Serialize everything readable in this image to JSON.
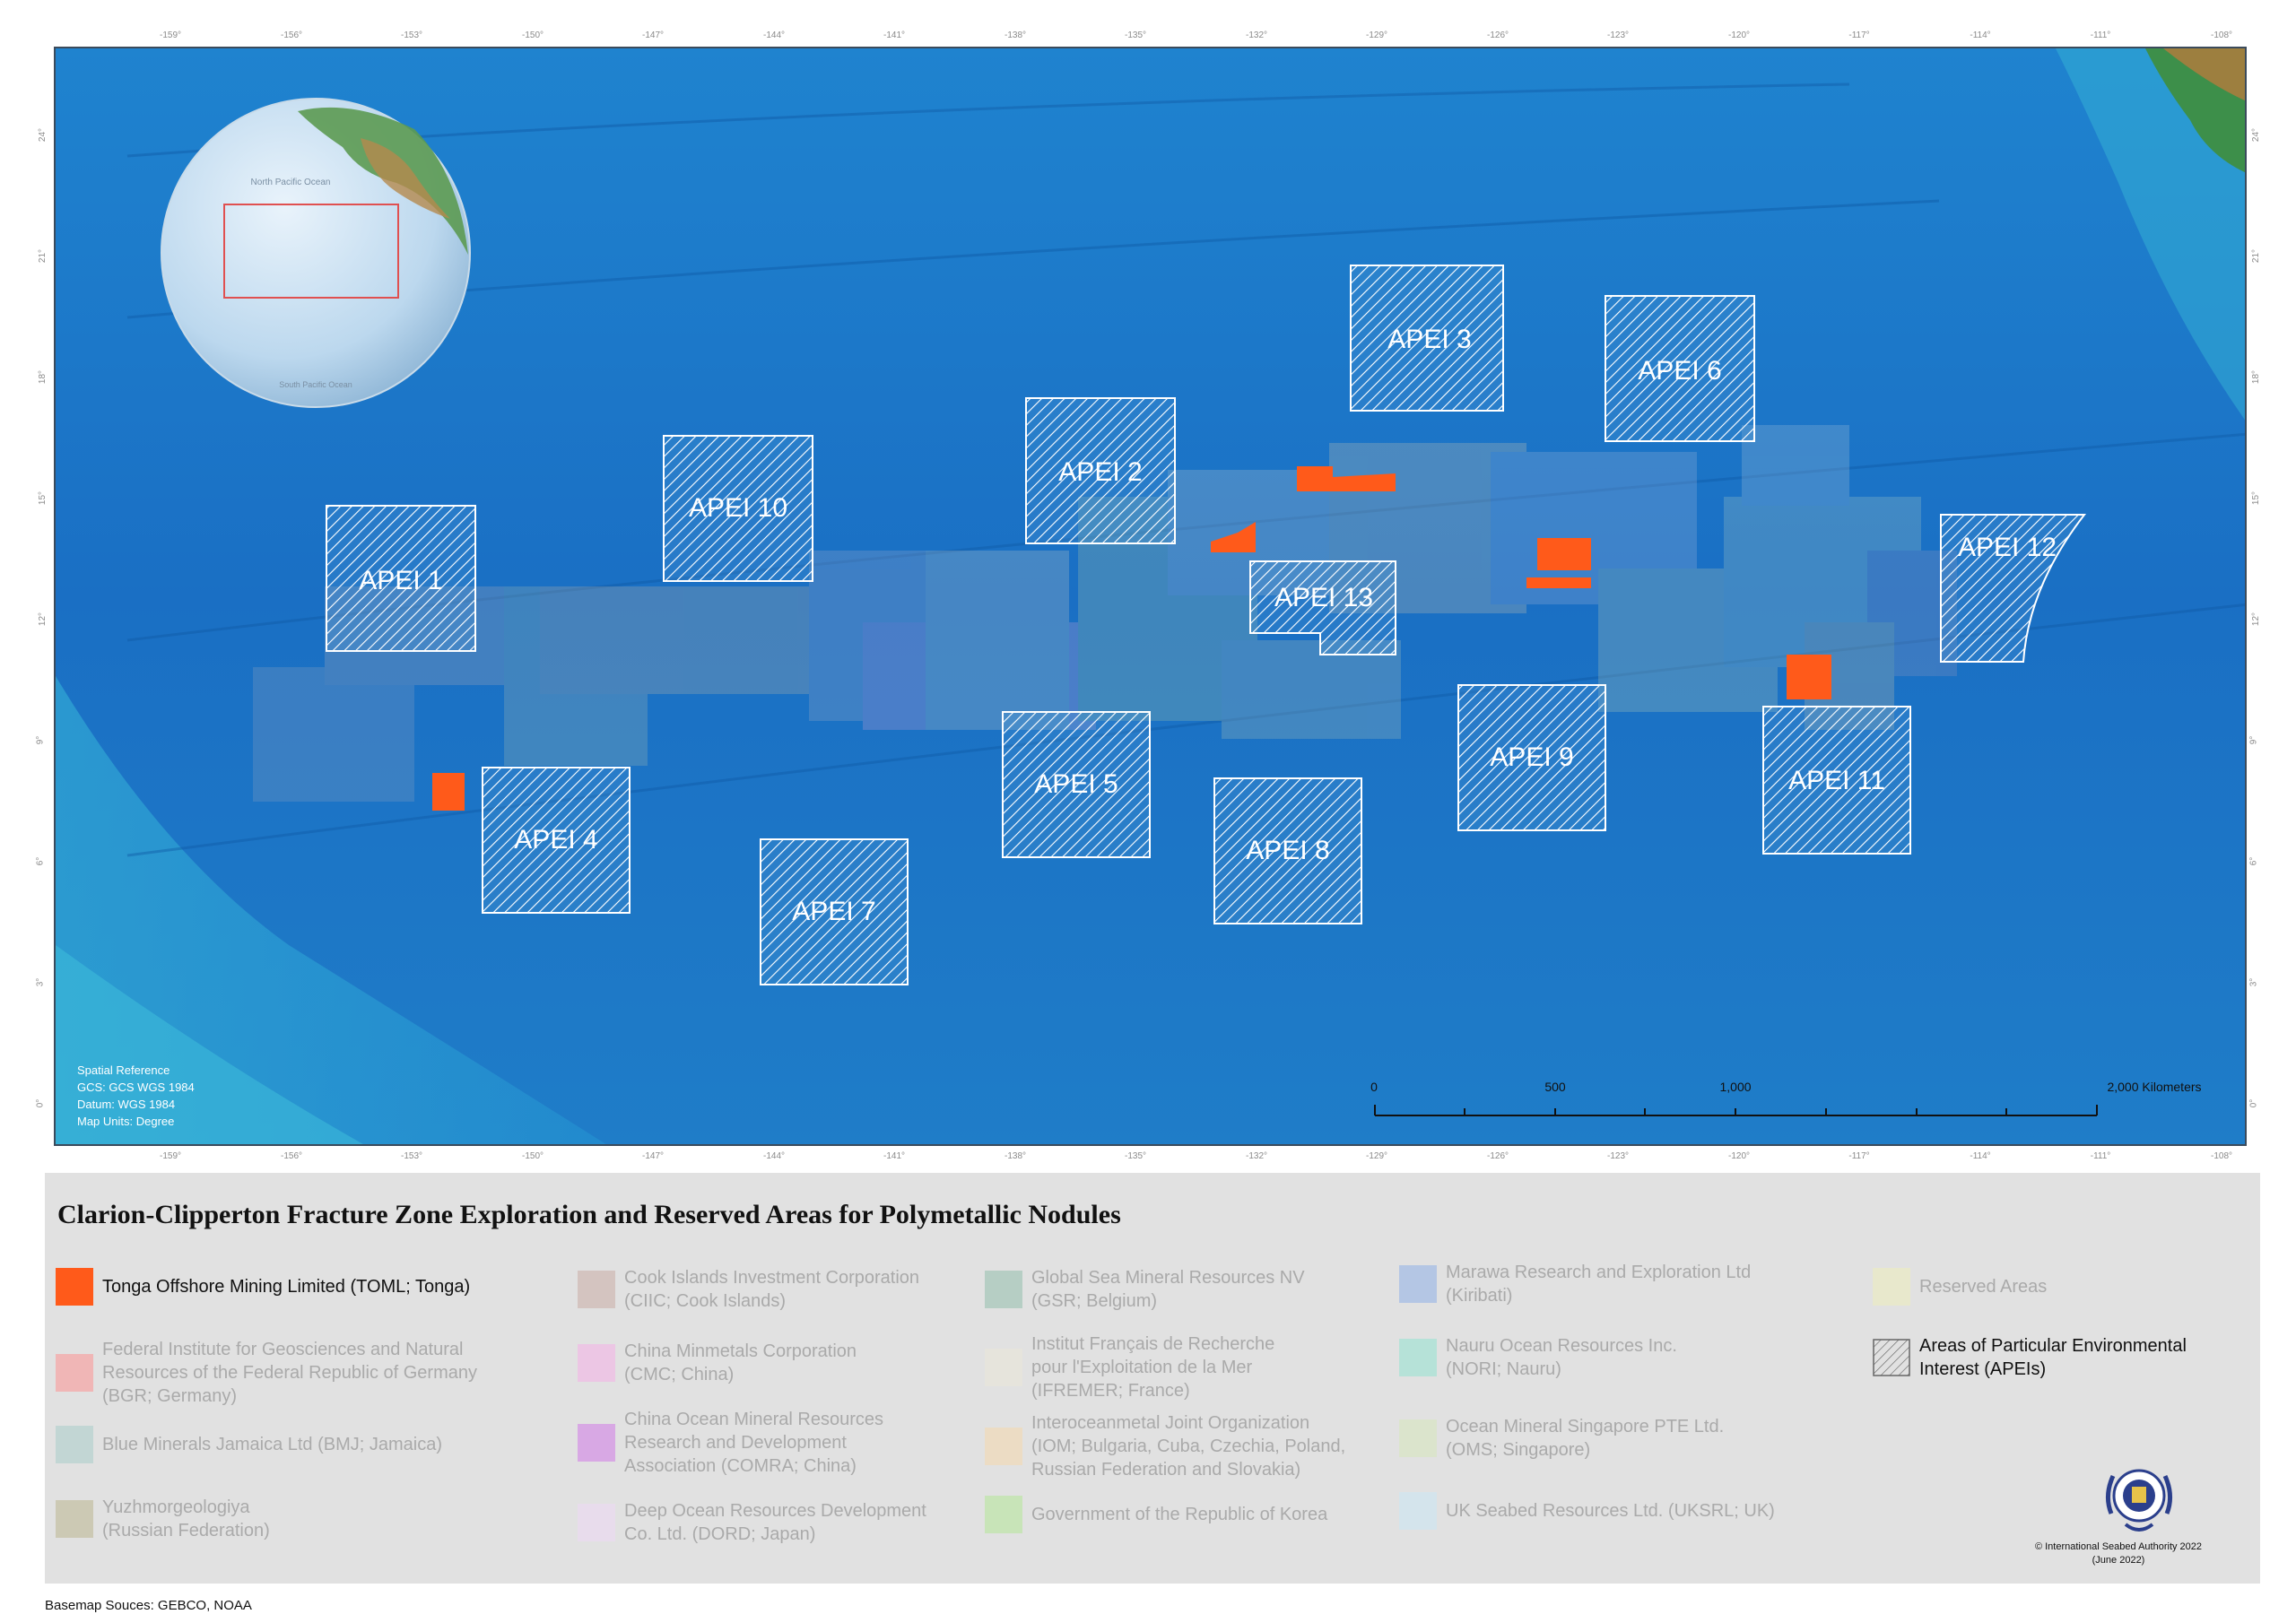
{
  "title": "Clarion-Clipperton Fracture Zone Exploration and Reserved Areas for Polymetallic Nodules",
  "top_ticks": [
    "-159°",
    "-156°",
    "-153°",
    "-150°",
    "-147°",
    "-144°",
    "-141°",
    "-138°",
    "-135°",
    "-132°",
    "-129°",
    "-126°",
    "-123°",
    "-120°",
    "-117°",
    "-114°",
    "-111°",
    "-108°"
  ],
  "bottom_ticks": [
    "-159°",
    "-156°",
    "-153°",
    "-150°",
    "-147°",
    "-144°",
    "-141°",
    "-138°",
    "-135°",
    "-132°",
    "-129°",
    "-126°",
    "-123°",
    "-120°",
    "-117°",
    "-114°",
    "-111°",
    "-108°"
  ],
  "side_ticks": [
    "24°",
    "21°",
    "18°",
    "15°",
    "12°",
    "9°",
    "6°",
    "3°",
    "0°"
  ],
  "globe": {
    "label1": "North Pacific Ocean",
    "label2": "South Pacific Ocean"
  },
  "apeis": [
    "APEI 1",
    "APEI 2",
    "APEI 3",
    "APEI 4",
    "APEI 5",
    "APEI 6",
    "APEI 7",
    "APEI 8",
    "APEI 9",
    "APEI 10",
    "APEI 11",
    "APEI 12",
    "APEI 13"
  ],
  "spatial_reference": [
    "Spatial Reference",
    "GCS: GCS WGS 1984",
    "Datum: WGS 1984",
    "Map Units: Degree"
  ],
  "scale_bar": {
    "labels": [
      "0",
      "500",
      "1,000",
      "2,000 Kilometers"
    ]
  },
  "colors": {
    "ocean": "#1d74c9",
    "toml": "#ff5a1a",
    "legend_bg": "#e1e1e1"
  },
  "legend": {
    "toml": "Tonga Offshore Mining Limited (TOML; Tonga)",
    "bgr": "Federal Institute for Geosciences and Natural\nResources of the Federal Republic of Germany\n(BGR; Germany)",
    "bmj": "Blue Minerals Jamaica Ltd (BMJ; Jamaica)",
    "yuzh": "Yuzhmorgeologiya\n(Russian Federation)",
    "ciic": "Cook Islands Investment Corporation\n(CIIC; Cook Islands)",
    "cmc": "China Minmetals Corporation\n(CMC; China)",
    "comra": "China Ocean Mineral Resources\nResearch and Development\nAssociation (COMRA; China)",
    "dord": "Deep Ocean Resources Development\nCo. Ltd. (DORD; Japan)",
    "gsr": "Global Sea Mineral Resources NV\n(GSR; Belgium)",
    "ifremer": "Institut Français de Recherche\npour l'Exploitation de la Mer\n(IFREMER; France)",
    "iom": "Interoceanmetal Joint Organization\n(IOM; Bulgaria, Cuba, Czechia, Poland,\nRussian Federation and Slovakia)",
    "korea": "Government of the Republic of Korea",
    "marawa": "Marawa Research and Exploration Ltd\n(Kiribati)",
    "nori": "Nauru Ocean Resources Inc.\n(NORI; Nauru)",
    "oms": "Ocean Mineral Singapore PTE Ltd.\n(OMS; Singapore)",
    "uksrl": "UK Seabed Resources Ltd. (UKSRL; UK)",
    "reserved": "Reserved Areas",
    "apei": "Areas of Particular Environmental\nInterest (APEIs)"
  },
  "copyright": "© International Seabed Authority 2022\n(June 2022)",
  "basemap_source": "Basemap Souces: GEBCO, NOAA",
  "logo_text": "INTERNATIONAL SEABED AUTHORITY"
}
